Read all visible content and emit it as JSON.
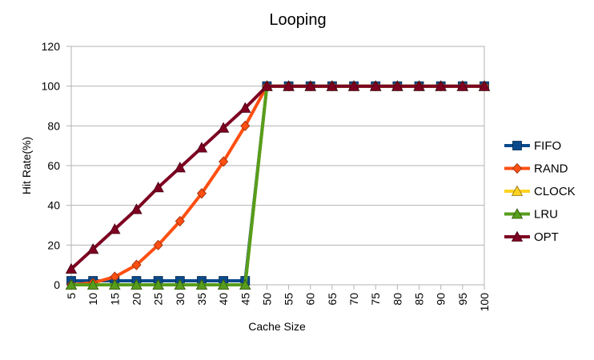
{
  "chart_data": {
    "type": "line",
    "title": "Looping",
    "xlabel": "Cache Size",
    "ylabel": "Hit Rate(%)",
    "categories": [
      "5",
      "10",
      "15",
      "20",
      "25",
      "30",
      "35",
      "40",
      "45",
      "50",
      "55",
      "60",
      "65",
      "70",
      "75",
      "80",
      "85",
      "90",
      "95",
      "100"
    ],
    "ylim": [
      0,
      120
    ],
    "yticks": [
      0,
      20,
      40,
      60,
      80,
      100,
      120
    ],
    "grid": "horizontal",
    "legend": "right",
    "series": [
      {
        "name": "FIFO",
        "color": "#0a4a8c",
        "marker": "square",
        "values": [
          2,
          2,
          2,
          2,
          2,
          2,
          2,
          2,
          2,
          100,
          100,
          100,
          100,
          100,
          100,
          100,
          100,
          100,
          100,
          100
        ]
      },
      {
        "name": "RAND",
        "color": "#ff4f12",
        "marker": "diamond",
        "values": [
          0,
          1,
          4,
          10,
          20,
          32,
          46,
          62,
          80,
          100,
          100,
          100,
          100,
          100,
          100,
          100,
          100,
          100,
          100,
          100
        ]
      },
      {
        "name": "CLOCK",
        "color": "#ffd320",
        "marker": "triangle",
        "values": [
          0,
          0,
          0,
          0,
          0,
          0,
          0,
          0,
          0,
          100,
          100,
          100,
          100,
          100,
          100,
          100,
          100,
          100,
          100,
          100
        ]
      },
      {
        "name": "LRU",
        "color": "#579d1c",
        "marker": "triangle",
        "values": [
          0,
          0,
          0,
          0,
          0,
          0,
          0,
          0,
          0,
          100,
          100,
          100,
          100,
          100,
          100,
          100,
          100,
          100,
          100,
          100
        ]
      },
      {
        "name": "OPT",
        "color": "#7e0021",
        "marker": "triangle",
        "values": [
          8,
          18,
          28,
          38,
          49,
          59,
          69,
          79,
          89,
          100,
          100,
          100,
          100,
          100,
          100,
          100,
          100,
          100,
          100,
          100
        ]
      }
    ]
  }
}
